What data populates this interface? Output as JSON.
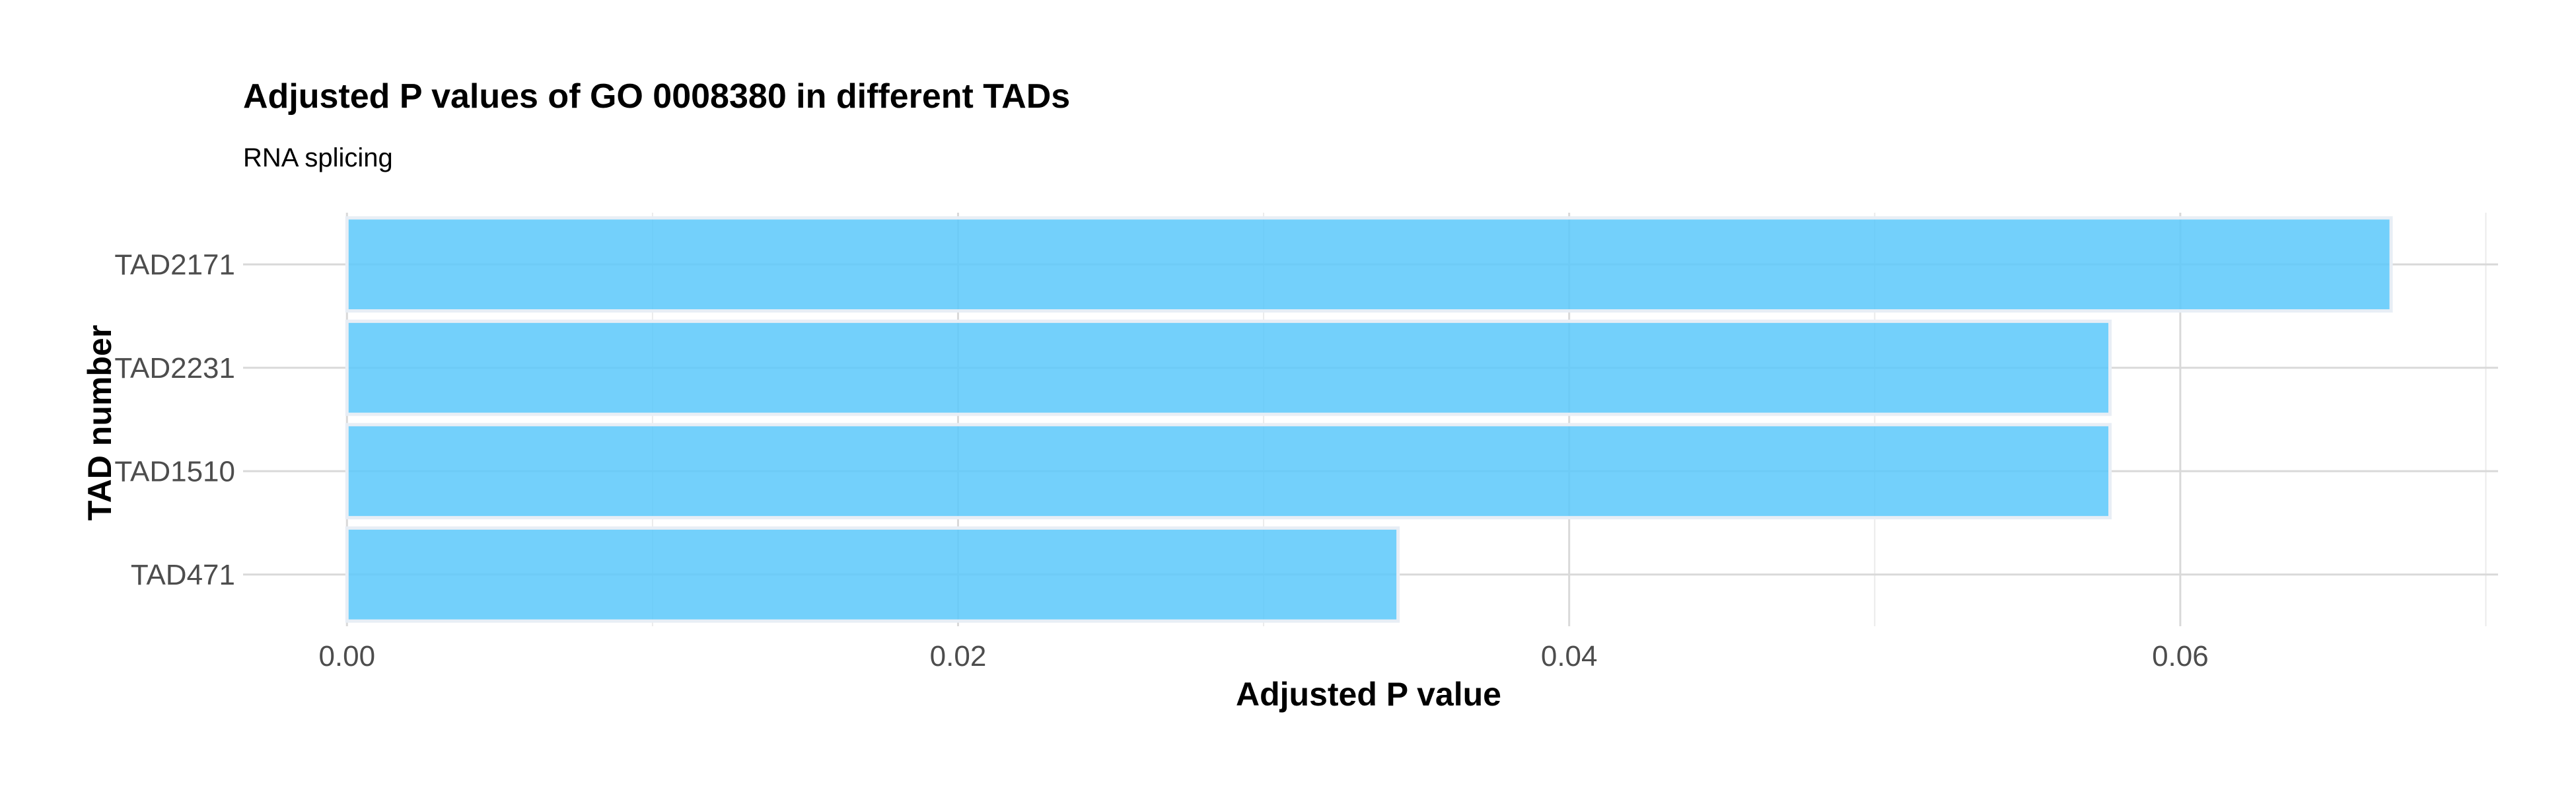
{
  "chart_data": {
    "type": "bar",
    "orientation": "horizontal",
    "title": "Adjusted P values of GO 0008380 in different TADs",
    "subtitle": "RNA splicing",
    "xlabel": "Adjusted P value",
    "ylabel": "TAD number",
    "categories": [
      "TAD2171",
      "TAD2231",
      "TAD1510",
      "TAD471"
    ],
    "values": [
      0.0669,
      0.0577,
      0.0577,
      0.0344
    ],
    "xlim": [
      -0.0034,
      0.0704
    ],
    "xticks": [
      0.0,
      0.02,
      0.04,
      0.06
    ],
    "xtick_labels": [
      "0.00",
      "0.02",
      "0.04",
      "0.06"
    ],
    "grid": true,
    "legend": false,
    "colors": {
      "bar_fill": "#5ac8fa",
      "bar_stroke": "#e8eef5",
      "grid_major": "#d9d9d9",
      "grid_minor": "#ebebeb",
      "tick_text": "#4d4d4d",
      "title_text": "#000000"
    }
  }
}
